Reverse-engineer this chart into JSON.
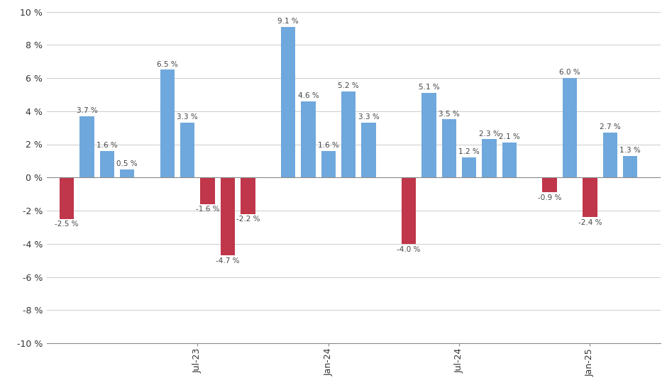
{
  "bars": [
    {
      "x": 1,
      "value": -2.5,
      "color": "#c0364a"
    },
    {
      "x": 2,
      "value": 3.7,
      "color": "#6fa8dc"
    },
    {
      "x": 3,
      "value": 1.6,
      "color": "#6fa8dc"
    },
    {
      "x": 4,
      "value": 0.5,
      "color": "#6fa8dc"
    },
    {
      "x": 6,
      "value": 6.5,
      "color": "#6fa8dc"
    },
    {
      "x": 7,
      "value": 3.3,
      "color": "#6fa8dc"
    },
    {
      "x": 8,
      "value": -1.6,
      "color": "#c0364a"
    },
    {
      "x": 9,
      "value": -4.7,
      "color": "#c0364a"
    },
    {
      "x": 10,
      "value": -2.2,
      "color": "#c0364a"
    },
    {
      "x": 12,
      "value": 9.1,
      "color": "#6fa8dc"
    },
    {
      "x": 13,
      "value": 4.6,
      "color": "#6fa8dc"
    },
    {
      "x": 14,
      "value": 1.6,
      "color": "#6fa8dc"
    },
    {
      "x": 15,
      "value": 5.2,
      "color": "#6fa8dc"
    },
    {
      "x": 16,
      "value": 3.3,
      "color": "#6fa8dc"
    },
    {
      "x": 18,
      "value": -4.0,
      "color": "#c0364a"
    },
    {
      "x": 19,
      "value": 5.1,
      "color": "#6fa8dc"
    },
    {
      "x": 20,
      "value": 3.5,
      "color": "#6fa8dc"
    },
    {
      "x": 21,
      "value": 1.2,
      "color": "#6fa8dc"
    },
    {
      "x": 22,
      "value": 2.3,
      "color": "#6fa8dc"
    },
    {
      "x": 23,
      "value": 2.1,
      "color": "#6fa8dc"
    },
    {
      "x": 25,
      "value": -0.9,
      "color": "#c0364a"
    },
    {
      "x": 26,
      "value": 6.0,
      "color": "#6fa8dc"
    },
    {
      "x": 27,
      "value": -2.4,
      "color": "#c0364a"
    },
    {
      "x": 28,
      "value": 2.7,
      "color": "#6fa8dc"
    },
    {
      "x": 29,
      "value": 1.3,
      "color": "#6fa8dc"
    }
  ],
  "xtick_positions": [
    7.5,
    14,
    20.5,
    27
  ],
  "xtick_labels": [
    "Jul-23",
    "Jan-24",
    "Jul-24",
    "Jan-25"
  ],
  "ylim": [
    -10,
    10
  ],
  "yticks": [
    -10,
    -8,
    -6,
    -4,
    -2,
    0,
    2,
    4,
    6,
    8,
    10
  ],
  "ytick_labels": [
    "-10 %",
    "-8 %",
    "-6 %",
    "-4 %",
    "-2 %",
    "0 %",
    "2 %",
    "4 %",
    "6 %",
    "8 %",
    "10 %"
  ],
  "bar_width": 0.72,
  "label_fontsize": 7.5,
  "label_color": "#444444",
  "grid_color": "#cccccc",
  "background_color": "#ffffff",
  "xlim": [
    0,
    30.5
  ],
  "blue_bar_color": "#6fa8dc",
  "red_bar_color": "#c0364a"
}
